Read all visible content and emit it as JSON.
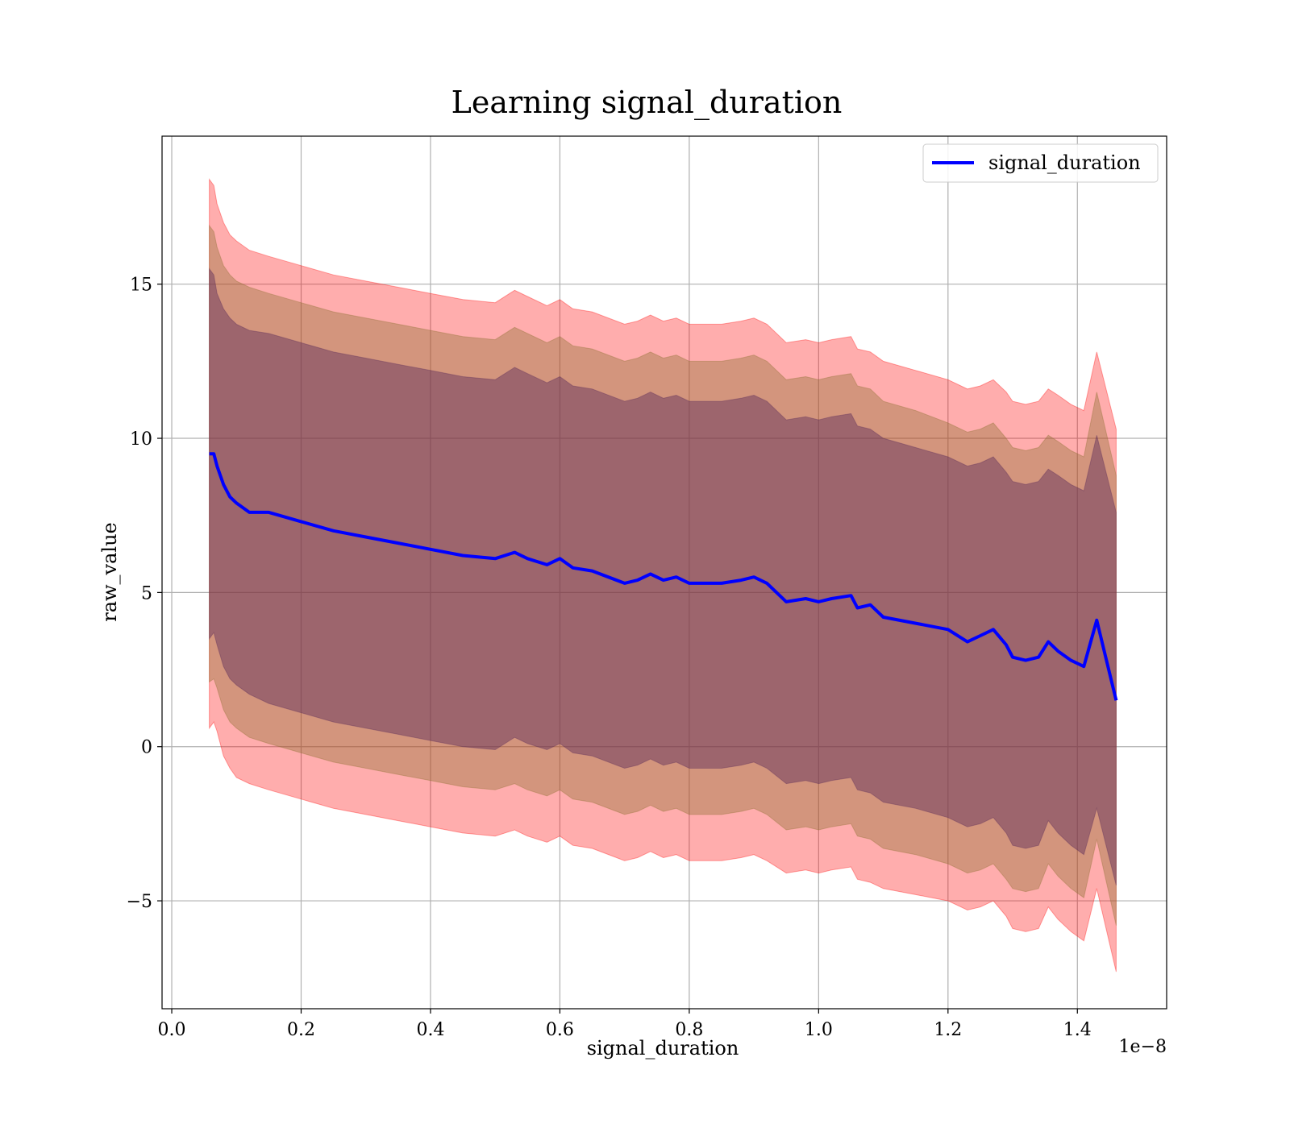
{
  "chart_data": {
    "type": "line",
    "title": "Learning signal_duration",
    "xlabel": "signal_duration",
    "ylabel": "raw_value",
    "x_offset_label": "1e−8",
    "xlim": [
      -0.015,
      1.538
    ],
    "ylim": [
      -8.5,
      19.8
    ],
    "x_ticks": [
      0.0,
      0.2,
      0.4,
      0.6,
      0.8,
      1.0,
      1.2,
      1.4
    ],
    "x_tick_labels": [
      "0.0",
      "0.2",
      "0.4",
      "0.6",
      "0.8",
      "1.0",
      "1.2",
      "1.4"
    ],
    "y_ticks": [
      -5,
      0,
      5,
      10,
      15
    ],
    "y_tick_labels": [
      "−5",
      "0",
      "5",
      "10",
      "15"
    ],
    "grid": true,
    "legend_position": "upper-right",
    "series": [
      {
        "name": "signal_duration",
        "color": "#0000ff",
        "x": [
          0.058,
          0.065,
          0.07,
          0.08,
          0.09,
          0.1,
          0.12,
          0.15,
          0.2,
          0.25,
          0.3,
          0.35,
          0.4,
          0.45,
          0.5,
          0.53,
          0.55,
          0.58,
          0.6,
          0.62,
          0.65,
          0.7,
          0.72,
          0.74,
          0.76,
          0.78,
          0.8,
          0.85,
          0.88,
          0.9,
          0.92,
          0.95,
          0.98,
          1.0,
          1.02,
          1.05,
          1.06,
          1.08,
          1.1,
          1.15,
          1.2,
          1.23,
          1.25,
          1.27,
          1.29,
          1.3,
          1.32,
          1.34,
          1.355,
          1.37,
          1.39,
          1.41,
          1.43,
          1.46
        ],
        "y": [
          9.5,
          9.5,
          9.1,
          8.5,
          8.1,
          7.9,
          7.6,
          7.6,
          7.3,
          7.0,
          6.8,
          6.6,
          6.4,
          6.2,
          6.1,
          6.3,
          6.1,
          5.9,
          6.1,
          5.8,
          5.7,
          5.3,
          5.4,
          5.6,
          5.4,
          5.5,
          5.3,
          5.3,
          5.4,
          5.5,
          5.3,
          4.7,
          4.8,
          4.7,
          4.8,
          4.9,
          4.5,
          4.6,
          4.2,
          4.0,
          3.8,
          3.4,
          3.6,
          3.8,
          3.3,
          2.9,
          2.8,
          2.9,
          3.4,
          3.1,
          2.8,
          2.6,
          4.1,
          1.5
        ]
      }
    ],
    "bands": [
      {
        "color": "#ff0000",
        "opacity": 0.32,
        "upper": [
          18.4,
          18.2,
          17.6,
          17.0,
          16.6,
          16.4,
          16.1,
          15.9,
          15.6,
          15.3,
          15.1,
          14.9,
          14.7,
          14.5,
          14.4,
          14.8,
          14.6,
          14.3,
          14.5,
          14.2,
          14.1,
          13.7,
          13.8,
          14.0,
          13.8,
          13.9,
          13.7,
          13.7,
          13.8,
          13.9,
          13.7,
          13.1,
          13.2,
          13.1,
          13.2,
          13.3,
          12.9,
          12.8,
          12.5,
          12.2,
          11.9,
          11.6,
          11.7,
          11.9,
          11.5,
          11.2,
          11.1,
          11.2,
          11.6,
          11.4,
          11.1,
          10.9,
          12.8,
          10.3
        ],
        "lower": [
          0.6,
          0.8,
          0.5,
          -0.3,
          -0.7,
          -1.0,
          -1.2,
          -1.4,
          -1.7,
          -2.0,
          -2.2,
          -2.4,
          -2.6,
          -2.8,
          -2.9,
          -2.7,
          -2.9,
          -3.1,
          -2.9,
          -3.2,
          -3.3,
          -3.7,
          -3.6,
          -3.4,
          -3.6,
          -3.5,
          -3.7,
          -3.7,
          -3.6,
          -3.5,
          -3.7,
          -4.1,
          -4.0,
          -4.1,
          -4.0,
          -3.9,
          -4.3,
          -4.4,
          -4.6,
          -4.8,
          -5.0,
          -5.3,
          -5.2,
          -5.0,
          -5.5,
          -5.9,
          -6.0,
          -5.9,
          -5.2,
          -5.6,
          -6.0,
          -6.3,
          -4.6,
          -7.3
        ]
      },
      {
        "color": "#8b6f30",
        "opacity": 0.38,
        "upper": [
          16.9,
          16.7,
          16.2,
          15.6,
          15.3,
          15.1,
          14.9,
          14.7,
          14.4,
          14.1,
          13.9,
          13.7,
          13.5,
          13.3,
          13.2,
          13.6,
          13.4,
          13.1,
          13.3,
          13.0,
          12.9,
          12.5,
          12.6,
          12.8,
          12.6,
          12.7,
          12.5,
          12.5,
          12.6,
          12.7,
          12.5,
          11.9,
          12.0,
          11.9,
          12.0,
          12.1,
          11.7,
          11.6,
          11.2,
          10.9,
          10.5,
          10.2,
          10.3,
          10.5,
          10.0,
          9.7,
          9.6,
          9.7,
          10.1,
          9.9,
          9.6,
          9.4,
          11.5,
          8.8
        ],
        "lower": [
          2.1,
          2.2,
          1.9,
          1.2,
          0.8,
          0.6,
          0.3,
          0.1,
          -0.2,
          -0.5,
          -0.7,
          -0.9,
          -1.1,
          -1.3,
          -1.4,
          -1.2,
          -1.4,
          -1.6,
          -1.4,
          -1.7,
          -1.8,
          -2.2,
          -2.1,
          -1.9,
          -2.1,
          -2.0,
          -2.2,
          -2.2,
          -2.1,
          -2.0,
          -2.2,
          -2.7,
          -2.6,
          -2.7,
          -2.6,
          -2.5,
          -2.9,
          -3.0,
          -3.3,
          -3.5,
          -3.8,
          -4.1,
          -4.0,
          -3.8,
          -4.3,
          -4.6,
          -4.7,
          -4.6,
          -3.8,
          -4.2,
          -4.6,
          -4.9,
          -3.0,
          -5.8
        ]
      },
      {
        "color": "#5a2a5a",
        "opacity": 0.45,
        "upper": [
          15.5,
          15.3,
          14.7,
          14.2,
          13.9,
          13.7,
          13.5,
          13.4,
          13.1,
          12.8,
          12.6,
          12.4,
          12.2,
          12.0,
          11.9,
          12.3,
          12.1,
          11.8,
          12.0,
          11.7,
          11.6,
          11.2,
          11.3,
          11.5,
          11.3,
          11.4,
          11.2,
          11.2,
          11.3,
          11.4,
          11.2,
          10.6,
          10.7,
          10.6,
          10.7,
          10.8,
          10.4,
          10.3,
          10.0,
          9.7,
          9.4,
          9.1,
          9.2,
          9.4,
          8.9,
          8.6,
          8.5,
          8.6,
          9.0,
          8.8,
          8.5,
          8.3,
          10.1,
          7.6
        ],
        "lower": [
          3.5,
          3.7,
          3.3,
          2.6,
          2.2,
          2.0,
          1.7,
          1.4,
          1.1,
          0.8,
          0.6,
          0.4,
          0.2,
          0.0,
          -0.1,
          0.3,
          0.1,
          -0.1,
          0.1,
          -0.2,
          -0.3,
          -0.7,
          -0.6,
          -0.4,
          -0.6,
          -0.5,
          -0.7,
          -0.7,
          -0.6,
          -0.5,
          -0.7,
          -1.2,
          -1.1,
          -1.2,
          -1.1,
          -1.0,
          -1.4,
          -1.5,
          -1.8,
          -2.0,
          -2.3,
          -2.6,
          -2.5,
          -2.3,
          -2.8,
          -3.2,
          -3.3,
          -3.2,
          -2.4,
          -2.8,
          -3.2,
          -3.5,
          -2.0,
          -4.5
        ]
      }
    ]
  }
}
